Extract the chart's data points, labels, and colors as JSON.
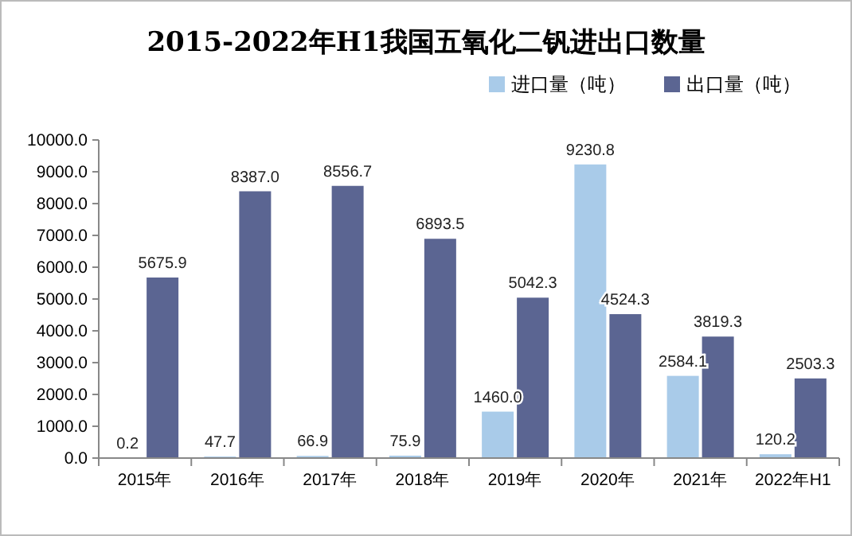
{
  "chart_data": {
    "type": "bar",
    "title": "2015-2022年H1我国五氧化二钒进出口数量",
    "categories": [
      "2015年",
      "2016年",
      "2017年",
      "2018年",
      "2019年",
      "2020年",
      "2021年",
      "2022年H1"
    ],
    "series": [
      {
        "name": "进口量（吨）",
        "color": "#a9cbe9",
        "values": [
          0.2,
          47.7,
          66.9,
          75.9,
          1460.0,
          9230.8,
          2584.1,
          120.2
        ],
        "value_labels": [
          "0.2",
          "47.7",
          "66.9",
          "75.9",
          "1460.0",
          "9230.8",
          "2584.1",
          "120.2"
        ]
      },
      {
        "name": "出口量（吨）",
        "color": "#5b6592",
        "values": [
          5675.9,
          8387.0,
          8556.7,
          6893.5,
          5042.3,
          4524.3,
          3819.3,
          2503.3
        ],
        "value_labels": [
          "5675.9",
          "8387.0",
          "8556.7",
          "6893.5",
          "5042.3",
          "4524.3",
          "3819.3",
          "2503.3"
        ]
      }
    ],
    "ylim": [
      0,
      10000
    ],
    "yticks": [
      {
        "value": 0,
        "label": "0.0"
      },
      {
        "value": 1000,
        "label": "1000.0"
      },
      {
        "value": 2000,
        "label": "2000.0"
      },
      {
        "value": 3000,
        "label": "3000.0"
      },
      {
        "value": 4000,
        "label": "4000.0"
      },
      {
        "value": 5000,
        "label": "5000.0"
      },
      {
        "value": 6000,
        "label": "6000.0"
      },
      {
        "value": 7000,
        "label": "7000.0"
      },
      {
        "value": 8000,
        "label": "8000.0"
      },
      {
        "value": 9000,
        "label": "9000.0"
      },
      {
        "value": 10000,
        "label": "10000.0"
      }
    ],
    "legend": "top right"
  }
}
